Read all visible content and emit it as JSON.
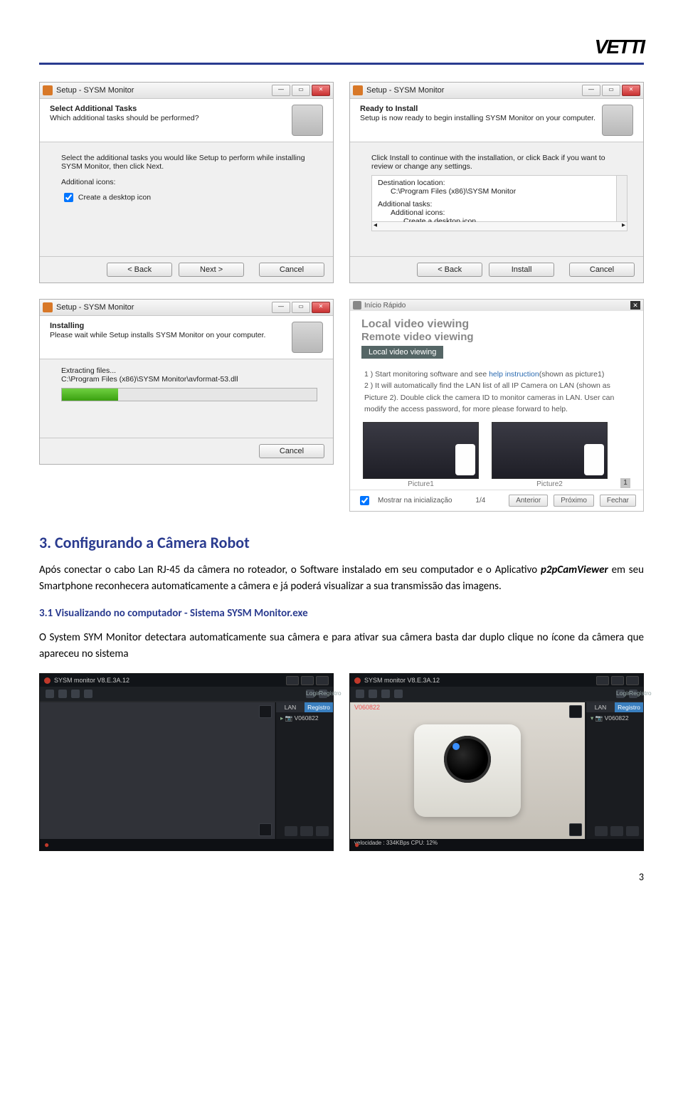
{
  "logo_text": "VETTI",
  "page_number": "3",
  "win1": {
    "title": "Setup - SYSM Monitor",
    "head": "Select Additional Tasks",
    "sub": "Which additional tasks should be performed?",
    "body1": "Select the additional tasks you would like Setup to perform while installing SYSM Monitor, then click Next.",
    "grp": "Additional icons:",
    "chk": "Create a desktop icon",
    "back": "< Back",
    "next": "Next >",
    "cancel": "Cancel"
  },
  "win2": {
    "title": "Setup - SYSM Monitor",
    "head": "Ready to Install",
    "sub": "Setup is now ready to begin installing SYSM Monitor on your computer.",
    "body1": "Click Install to continue with the installation, or click Back if you want to review or change any settings.",
    "l1": "Destination location:",
    "l2": "C:\\Program Files (x86)\\SYSM Monitor",
    "l3": "Additional tasks:",
    "l4": "Additional icons:",
    "l5": "Create a desktop icon",
    "back": "< Back",
    "install": "Install",
    "cancel": "Cancel"
  },
  "win3": {
    "title": "Setup - SYSM Monitor",
    "head": "Installing",
    "sub": "Please wait while Setup installs SYSM Monitor on your computer.",
    "l1": "Extracting files...",
    "l2": "C:\\Program Files (x86)\\SYSM Monitor\\avformat-53.dll",
    "progress_pct": 22,
    "cancel": "Cancel"
  },
  "qs": {
    "tb": "Início Rápido",
    "h1": "Local video viewing",
    "h2": "Remote video viewing",
    "tab": "Local video viewing",
    "p1a": "1 ) Start monitoring software and see ",
    "p1link": "help instruction",
    "p1b": "(shown as picture1)",
    "p2": "2 ) It will automatically find the LAN list of all IP Camera on LAN (shown as Picture 2). Double click the camera ID to monitor cameras in LAN. User can modify the access password, for more please forward to help.",
    "cap1": "Picture1",
    "cap2": "Picture2",
    "ft_chk": "Mostrar na inicialização",
    "step": "1/4",
    "prev": "Anterior",
    "next": "Próximo",
    "close": "Fechar"
  },
  "h2": "3. Configurando a Câmera Robot",
  "para1a": "Após conectar o cabo Lan RJ-45 da câmera no roteador, o Software instalado em seu computador e o Aplicativo ",
  "para1b": "p2pCamViewer",
  "para1c": " em seu Smartphone reconhecera automaticamente a câmera e já poderá visualizar a sua transmissão das imagens.",
  "sub": "3.1  Visualizando no computador - Sistema SYSM Monitor.exe",
  "para2": "O System SYM Monitor detectara automaticamente sua câmera e para ativar sua câmera basta dar duplo clique no ícone da câmera que apareceu no sistema",
  "mon": {
    "ver": "SYSM monitor V8.E.3A.12",
    "tab_lan": "LAN",
    "tab_reg": "Registro",
    "login": "Login",
    "cam_id": "V060822",
    "status": "velocidade : 334KBps CPU: 12%"
  }
}
